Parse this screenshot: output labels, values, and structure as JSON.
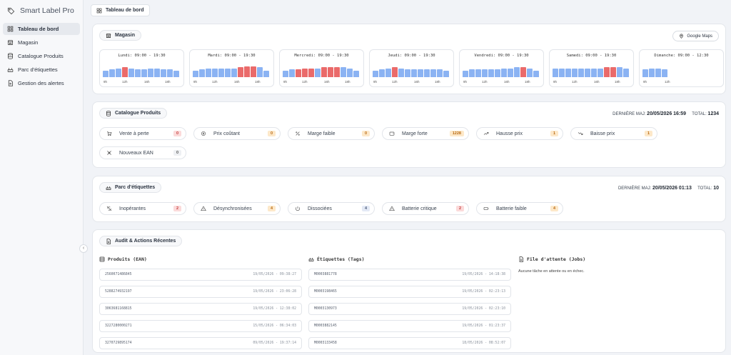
{
  "app": {
    "name": "Smart Label Pro",
    "logo_icon": "tag-icon"
  },
  "sidebar": {
    "items": [
      {
        "label": "Tableau de bord",
        "icon": "grid-icon",
        "active": true
      },
      {
        "label": "Magasin",
        "icon": "store-icon",
        "active": false
      },
      {
        "label": "Catalogue Produits",
        "icon": "database-icon",
        "active": false
      },
      {
        "label": "Parc d'étiquettes",
        "icon": "router-icon",
        "active": false
      },
      {
        "label": "Gestion des alertes",
        "icon": "document-icon",
        "active": false
      }
    ]
  },
  "breadcrumb": {
    "label": "Tableau de bord"
  },
  "magasin": {
    "title": "Magasin",
    "maps_button": "Google Maps",
    "days": [
      {
        "label": "Lundi: 09:00 - 19:30",
        "ticks": [
          "9h",
          "12h",
          "16h",
          "18h"
        ],
        "bars": [
          6,
          7,
          8,
          9,
          8,
          7,
          7,
          8,
          8,
          7,
          7,
          6
        ],
        "hot": [
          3
        ]
      },
      {
        "label": "Mardi: 09:00 - 19:30",
        "ticks": [
          "9h",
          "12h",
          "16h",
          "18h"
        ],
        "bars": [
          6,
          7,
          8,
          8,
          8,
          8,
          8,
          9,
          10,
          10,
          9,
          6
        ],
        "hot": [
          7,
          8,
          9
        ]
      },
      {
        "label": "Mercredi: 09:00 - 19:30",
        "ticks": [
          "9h",
          "12h",
          "16h",
          "18h"
        ],
        "bars": [
          6,
          7,
          7,
          8,
          8,
          8,
          9,
          9,
          9,
          9,
          8,
          6
        ],
        "hot": [
          2,
          3,
          4,
          6,
          7,
          8
        ]
      },
      {
        "label": "Jeudi: 09:00 - 19:30",
        "ticks": [
          "9h",
          "12h",
          "16h",
          "18h"
        ],
        "bars": [
          6,
          7,
          8,
          9,
          8,
          7,
          7,
          7,
          7,
          7,
          7,
          6
        ],
        "hot": [
          3
        ]
      },
      {
        "label": "Vendredi: 09:00 - 19:30",
        "ticks": [
          "9h",
          "12h",
          "16h",
          "18h"
        ],
        "bars": [
          6,
          7,
          7,
          7,
          7,
          7,
          8,
          8,
          9,
          9,
          8,
          6
        ],
        "hot": [
          9
        ]
      },
      {
        "label": "Samedi: 09:00 - 19:30",
        "ticks": [
          "9h",
          "12h",
          "16h",
          "18h"
        ],
        "bars": [
          8,
          8,
          8,
          8,
          8,
          8,
          8,
          8,
          9,
          9,
          9,
          8
        ],
        "hot": [
          8,
          9
        ]
      },
      {
        "label": "Dimanche: 09:00 - 12:30",
        "ticks": [
          "9h",
          "12h"
        ],
        "bars": [
          7,
          8,
          8,
          7
        ],
        "hot": []
      }
    ]
  },
  "catalogue": {
    "title": "Catalogue Produits",
    "updated_label": "DERNIÈRE MAJ:",
    "updated_value": "20/05/2026 16:59",
    "total_label": "TOTAL:",
    "total_value": "1234",
    "pills": [
      {
        "label": "Vente à perte",
        "count": "0",
        "color": "red",
        "icon": "cart-icon"
      },
      {
        "label": "Prix coûtant",
        "count": "0",
        "color": "orange",
        "icon": "coin-icon"
      },
      {
        "label": "Marge faible",
        "count": "0",
        "color": "orange",
        "icon": "percent-icon"
      },
      {
        "label": "Marge forte",
        "count": "1228",
        "color": "orange",
        "icon": "wallet-icon"
      },
      {
        "label": "Hausse prix",
        "count": "1",
        "color": "orange",
        "icon": "trend-up-icon"
      },
      {
        "label": "Baisse prix",
        "count": "1",
        "color": "orange",
        "icon": "trend-down-icon"
      },
      {
        "label": "Nouveaux EAN",
        "count": "0",
        "color": "gray",
        "icon": "new-icon"
      }
    ]
  },
  "parc": {
    "title": "Parc d'étiquettes",
    "updated_label": "DERNIÈRE MAJ:",
    "updated_value": "20/05/2026 01:13",
    "total_label": "TOTAL:",
    "total_value": "10",
    "pills": [
      {
        "label": "Inopérantes",
        "count": "2",
        "color": "red",
        "icon": "disabled-icon"
      },
      {
        "label": "Désynchronisées",
        "count": "4",
        "color": "orange",
        "icon": "warning-icon"
      },
      {
        "label": "Dissociées",
        "count": "4",
        "color": "blue",
        "icon": "power-icon"
      },
      {
        "label": "Batterie critique",
        "count": "2",
        "color": "red",
        "icon": "warning-icon"
      },
      {
        "label": "Batterie faible",
        "count": "4",
        "color": "orange",
        "icon": "battery-icon"
      }
    ]
  },
  "audit": {
    "title": "Audit & Actions Récentes",
    "produits": {
      "title": "Produits (EAN)",
      "rows": [
        {
          "id": "2560071486845",
          "ts": "19/05/2026 - 09:38:27"
        },
        {
          "id": "5288274932197",
          "ts": "19/05/2026 - 23:06:28"
        },
        {
          "id": "3063681168815",
          "ts": "19/05/2026 - 12:38:02"
        },
        {
          "id": "3227280000271",
          "ts": "15/05/2026 - 06:34:03"
        },
        {
          "id": "3270729895174",
          "ts": "09/05/2026 - 19:37:14"
        }
      ]
    },
    "etiquettes": {
      "title": "Étiquettes (Tags)",
      "rows": [
        {
          "id": "M0003881778",
          "ts": "19/05/2026 - 14:18:38"
        },
        {
          "id": "M0003198465",
          "ts": "19/05/2026 - 02:23:13"
        },
        {
          "id": "M0003130973",
          "ts": "19/05/2026 - 02:23:10"
        },
        {
          "id": "M0003882145",
          "ts": "19/05/2026 - 01:23:37"
        },
        {
          "id": "M0003133458",
          "ts": "18/05/2026 - 08:52:07"
        }
      ]
    },
    "jobs": {
      "title": "File d'attente (Jobs)",
      "empty": "Aucune tâche en attente ou en échec."
    }
  }
}
